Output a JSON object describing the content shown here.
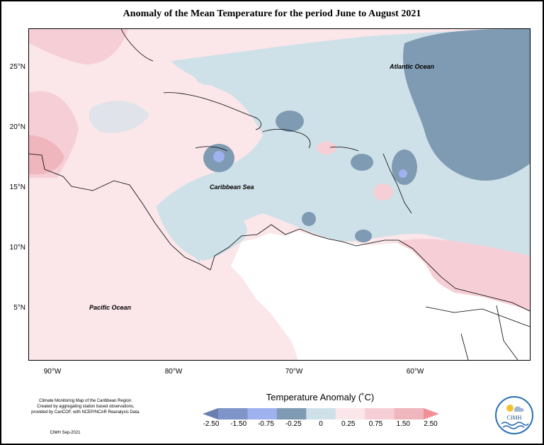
{
  "title": "Anomaly of the Mean Temperature for the period June to August 2021",
  "map_labels": {
    "atlantic": "Atlantic Ocean",
    "caribbean": "Caribbean Sea",
    "pacific": "Pacific Ocean"
  },
  "y_ticks": [
    "25°N",
    "20°N",
    "15°N",
    "10°N",
    "5°N"
  ],
  "x_ticks": [
    "90°W",
    "80°W",
    "70°W",
    "60°W"
  ],
  "legend": {
    "title": "Temperature Anomaly (˚C)",
    "ticks": [
      "-2.50",
      "-1.50",
      "-0.75",
      "-0.25",
      "0",
      "0.25",
      "0.75",
      "1.50",
      "2.50"
    ],
    "colors": [
      "#6a7fb1",
      "#7f94c8",
      "#9fb1ee",
      "#7f9bb3",
      "#cfe1e8",
      "#fbe6ea",
      "#f6cfd6",
      "#efb6bd",
      "#f28f96"
    ]
  },
  "credits": [
    "Climate Monitoring Map of the Caribbean Region.",
    "Created by aggregating station based observations,",
    "provided by CariCOF, with NCEP/NCAR Reanalysis Data."
  ],
  "stamp": "CIMH Sep-2021",
  "logo": {
    "text": "CIMH",
    "icon": "cimh-logo-sun-cloud-waves"
  }
}
